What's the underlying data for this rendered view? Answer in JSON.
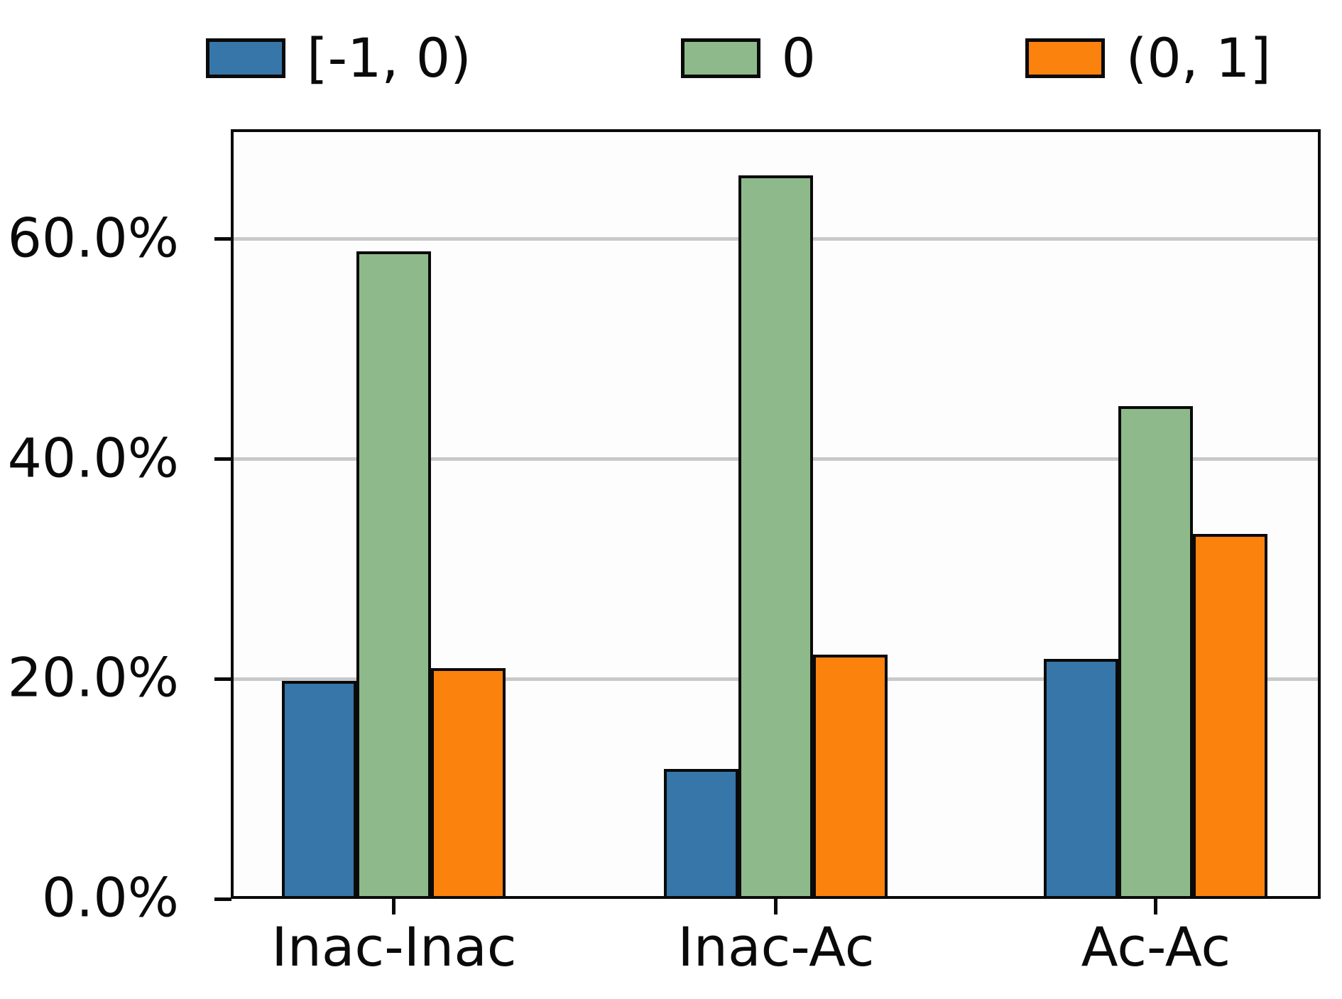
{
  "chart_data": {
    "type": "bar",
    "title": "",
    "xlabel": "",
    "ylabel": "",
    "categories": [
      "Inac-Inac",
      "Inac-Ac",
      "Ac-Ac"
    ],
    "series": [
      {
        "name": "[-1, 0)",
        "color": "#3776a8",
        "values": [
          19.8,
          11.8,
          21.8
        ]
      },
      {
        "name": "0",
        "color": "#8eba8b",
        "values": [
          58.9,
          65.8,
          44.8
        ]
      },
      {
        "name": "(0, 1]",
        "color": "#fb820d",
        "values": [
          21.0,
          22.2,
          33.2
        ]
      }
    ],
    "ylim": [
      0,
      70
    ],
    "yticks": [
      {
        "value": 0,
        "label": "0.0%"
      },
      {
        "value": 20,
        "label": "20.0%"
      },
      {
        "value": 40,
        "label": "40.0%"
      },
      {
        "value": 60,
        "label": "60.0%"
      }
    ],
    "grid": "horizontal",
    "gridline_values": [
      20,
      40,
      60
    ],
    "gridline_color": "#c9c9c9",
    "edge_color": "#0a0a0a",
    "legend_position": "top"
  }
}
